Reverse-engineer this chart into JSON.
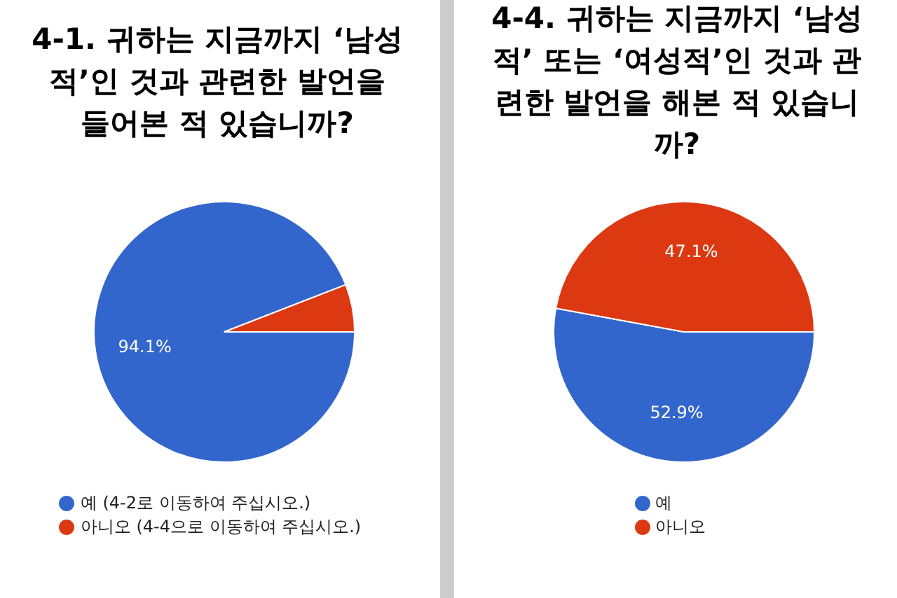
{
  "chart_data": [
    {
      "type": "pie",
      "title": "4-1. 귀하는 지금까지 ‘남성적’인 것과 관련한 발언을 들어본 적 있습니까?",
      "categories": [
        "예 (4-2로 이동하여 주십시오.)",
        "아니오 (4-4으로 이동하여 주십시오.)"
      ],
      "values": [
        94.1,
        5.9
      ],
      "colors": [
        "#3366cc",
        "#dc3912"
      ],
      "value_labels": [
        "94.1%",
        null
      ],
      "legend": "bottom"
    },
    {
      "type": "pie",
      "title": "4-4. 귀하는 지금까지 ‘남성적’ 또는 ‘여성적’인 것과 관련한 발언을 해본 적 있습니까?",
      "categories": [
        "예",
        "아니오"
      ],
      "values": [
        52.9,
        47.1
      ],
      "colors": [
        "#3366cc",
        "#dc3912"
      ],
      "value_labels": [
        "52.9%",
        "47.1%"
      ],
      "legend": "bottom"
    }
  ]
}
